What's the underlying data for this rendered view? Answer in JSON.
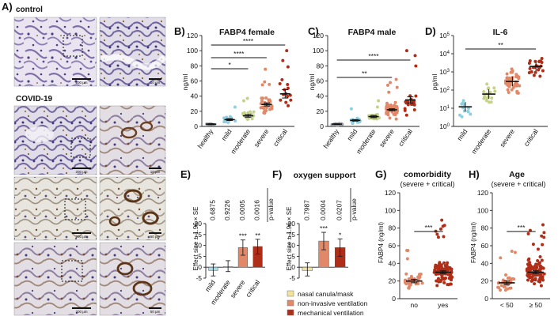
{
  "panels": {
    "A": {
      "label": "A)",
      "control_label": "control",
      "covid_label": "COVID-19",
      "scale_bars": [
        "200 µm",
        "10 µm",
        "200 µm",
        "10 µm",
        "200 µm",
        "50 µm",
        "200 µm",
        "50 µm"
      ]
    },
    "B": {
      "label": "B)",
      "title": "FABP4 female",
      "ylabel": "ng/ml",
      "ylim": [
        0,
        120
      ],
      "yticks": [
        "0",
        "20",
        "40",
        "60",
        "80",
        "100",
        "120"
      ],
      "categories": [
        "healthy",
        "mild",
        "moderate",
        "severe",
        "critical"
      ],
      "sig": [
        "*",
        "****",
        "****"
      ]
    },
    "C": {
      "label": "C)",
      "title": "FABP4 male",
      "ylabel": "ng/ml",
      "ylim": [
        0,
        120
      ],
      "yticks": [
        "0",
        "20",
        "40",
        "60",
        "80",
        "100",
        "120"
      ],
      "categories": [
        "healthy",
        "mild",
        "moderate",
        "severe",
        "critical"
      ],
      "sig": [
        "**",
        "****"
      ]
    },
    "D": {
      "label": "D)",
      "title": "IL-6",
      "ylabel": "pg/ml",
      "yticks": [
        "10^0",
        "10^1",
        "10^2",
        "10^3",
        "10^4",
        "10^5"
      ],
      "categories": [
        "mild",
        "moderate",
        "severe",
        "critical"
      ],
      "sig": [
        "**"
      ]
    },
    "E": {
      "label": "E)",
      "ylabel": "Effect size ± 1.96 × SE",
      "ylim": [
        -5,
        20
      ],
      "yticks": [
        "-5",
        "0",
        "5",
        "10",
        "15",
        "20"
      ],
      "categories": [
        "mild",
        "moderate",
        "severe",
        "critical"
      ],
      "pvalues": [
        "0.6875",
        "0.9226",
        "0.0005",
        "0.0016"
      ],
      "pvalue_label": "p-value",
      "stars": [
        "",
        "",
        "***",
        "**"
      ]
    },
    "F": {
      "label": "F)",
      "title": "oxygen support",
      "ylabel": "Effect size ± 1.96 × SE",
      "ylim": [
        -5,
        20
      ],
      "yticks": [
        "-5",
        "0",
        "5",
        "10",
        "15",
        "20"
      ],
      "pvalues": [
        "0.7987",
        "0.0004",
        "0.0207"
      ],
      "pvalue_label": "p-value",
      "stars": [
        "",
        "***",
        "*"
      ],
      "legend": [
        "nasal canula/mask",
        "non-invasive ventilation",
        "mechanical ventilation"
      ],
      "colors": [
        "#f2e39a",
        "#e08868",
        "#b02e18"
      ]
    },
    "G": {
      "label": "G)",
      "title": "comorbidity",
      "subtitle": "(severe + critical)",
      "ylabel": "FABP4 (ng/ml)",
      "ylim": [
        0,
        120
      ],
      "yticks": [
        "0",
        "20",
        "40",
        "60",
        "80",
        "100",
        "120"
      ],
      "categories": [
        "no",
        "yes"
      ],
      "sig": [
        "***"
      ]
    },
    "H": {
      "label": "H)",
      "title": "Age",
      "subtitle": "(severe + critical)",
      "ylabel": "FABP4 (ng/ml)",
      "ylim": [
        0,
        120
      ],
      "yticks": [
        "0",
        "20",
        "40",
        "60",
        "80",
        "100",
        "120"
      ],
      "categories": [
        "< 50",
        "≥ 50"
      ],
      "sig": [
        "***"
      ]
    }
  },
  "chart_data": [
    {
      "type": "scatter",
      "panel": "B",
      "title": "FABP4 female",
      "ylabel": "ng/ml",
      "ylim": [
        0,
        120
      ],
      "categories": [
        "healthy",
        "mild",
        "moderate",
        "severe",
        "critical"
      ],
      "means": [
        3,
        9,
        14,
        29,
        43
      ],
      "sem": [
        0.6,
        1.2,
        1.8,
        2.0,
        5.5
      ],
      "colors": [
        "#9ba0a4",
        "#8fcfdf",
        "#c6d28a",
        "#e08868",
        "#b02e18"
      ]
    },
    {
      "type": "scatter",
      "panel": "C",
      "title": "FABP4 male",
      "ylabel": "ng/ml",
      "ylim": [
        0,
        120
      ],
      "categories": [
        "healthy",
        "mild",
        "moderate",
        "severe",
        "critical"
      ],
      "means": [
        3,
        8,
        13,
        22,
        35
      ],
      "sem": [
        0.5,
        1.0,
        1.5,
        1.3,
        4.0
      ],
      "colors": [
        "#9ba0a4",
        "#8fcfdf",
        "#c6d28a",
        "#e08868",
        "#b02e18"
      ]
    },
    {
      "type": "scatter",
      "panel": "D",
      "title": "IL-6",
      "ylabel": "pg/ml",
      "yscale": "log",
      "ylim": [
        1,
        100000
      ],
      "categories": [
        "mild",
        "moderate",
        "severe",
        "critical"
      ],
      "means": [
        12,
        60,
        300,
        2000
      ],
      "colors": [
        "#8fcfdf",
        "#c6d28a",
        "#e08868",
        "#b02e18"
      ]
    },
    {
      "type": "bar",
      "panel": "E",
      "ylabel": "Effect size ± 1.96 × SE",
      "ylim": [
        -5,
        20
      ],
      "categories": [
        "mild",
        "moderate",
        "severe",
        "critical"
      ],
      "values": [
        -1.5,
        0.3,
        9,
        9.5
      ],
      "ci_low": [
        -4,
        -2,
        5.5,
        6
      ],
      "ci_high": [
        1.5,
        3,
        12.5,
        12.8
      ],
      "colors": [
        "#a8dde8",
        "#d6dc9c",
        "#e08868",
        "#b02e18"
      ]
    },
    {
      "type": "bar",
      "panel": "F",
      "ylabel": "Effect size ± 1.96 × SE",
      "ylim": [
        -5,
        20
      ],
      "categories": [
        "nasal canula/mask",
        "non-invasive ventilation",
        "mechanical ventilation"
      ],
      "values": [
        -1.5,
        12,
        9
      ],
      "ci_low": [
        -4,
        8,
        5
      ],
      "ci_high": [
        2,
        16,
        13
      ],
      "colors": [
        "#f2e39a",
        "#e08868",
        "#b02e18"
      ]
    },
    {
      "type": "scatter",
      "panel": "G",
      "title": "comorbidity",
      "ylabel": "FABP4 (ng/ml)",
      "ylim": [
        0,
        120
      ],
      "categories": [
        "no",
        "yes"
      ],
      "means": [
        20,
        30
      ],
      "sem": [
        2,
        1.5
      ],
      "colors": [
        "#e08868",
        "#b02e18"
      ]
    },
    {
      "type": "scatter",
      "panel": "H",
      "title": "Age",
      "ylabel": "FABP4 (ng/ml)",
      "ylim": [
        0,
        120
      ],
      "categories": [
        "< 50",
        "≥ 50"
      ],
      "means": [
        18,
        30
      ],
      "sem": [
        2,
        1.5
      ],
      "colors": [
        "#e08868",
        "#b02e18"
      ]
    }
  ]
}
